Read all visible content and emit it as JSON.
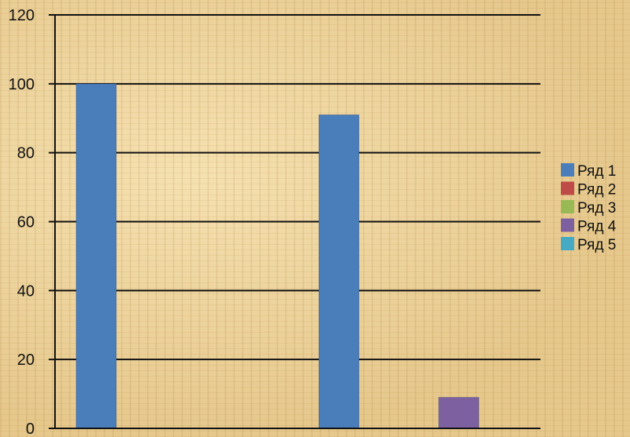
{
  "chart_data": {
    "type": "bar",
    "categories": [
      "",
      "",
      "",
      ""
    ],
    "series": [
      {
        "name": "Ряд 1",
        "color": "#4a7ebb",
        "values": [
          100,
          0,
          91,
          0
        ]
      },
      {
        "name": "Ряд 2",
        "color": "#be4b48",
        "values": [
          0,
          0,
          0,
          0
        ]
      },
      {
        "name": "Ряд 3",
        "color": "#98b954",
        "values": [
          0,
          0,
          0,
          0
        ]
      },
      {
        "name": "Ряд 4",
        "color": "#7d60a0",
        "values": [
          0,
          0,
          0,
          9
        ]
      },
      {
        "name": "Ряд 5",
        "color": "#46aac5",
        "values": [
          0,
          0,
          0,
          0
        ]
      }
    ],
    "ylim": [
      0,
      120
    ],
    "yticks": [
      0,
      20,
      40,
      60,
      80,
      100,
      120
    ],
    "grid": true,
    "legend": "right"
  }
}
